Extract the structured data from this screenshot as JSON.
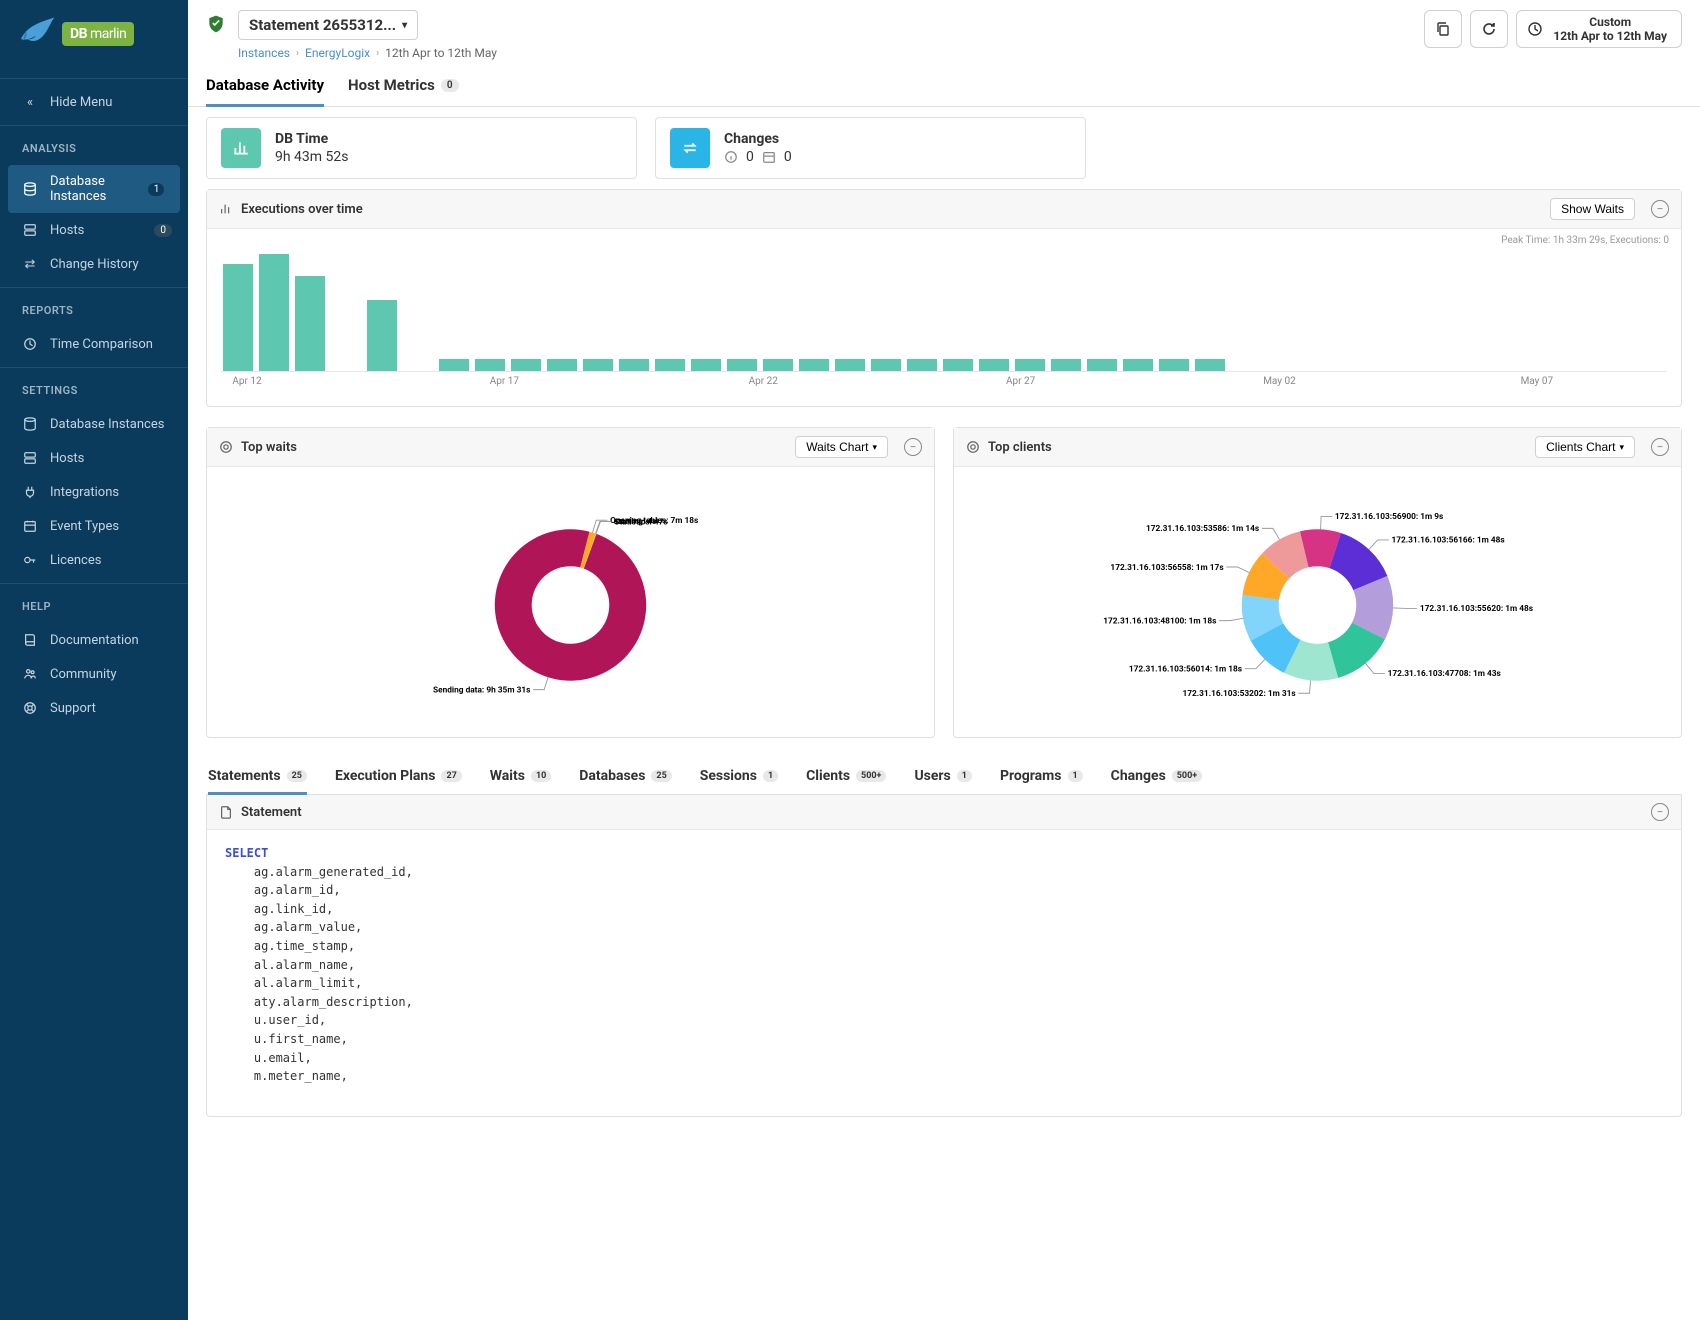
{
  "brand": {
    "name1": "DB",
    "name2": "marlin"
  },
  "sidebar": {
    "hide_menu": "Hide Menu",
    "sections": {
      "analysis": "ANALYSIS",
      "reports": "REPORTS",
      "settings": "SETTINGS",
      "help": "HELP"
    },
    "items": {
      "db_instances": {
        "label": "Database Instances",
        "badge": "1"
      },
      "hosts": {
        "label": "Hosts",
        "badge": "0"
      },
      "change_history": {
        "label": "Change History"
      },
      "time_comparison": {
        "label": "Time Comparison"
      },
      "set_db_instances": {
        "label": "Database Instances"
      },
      "set_hosts": {
        "label": "Hosts"
      },
      "integrations": {
        "label": "Integrations"
      },
      "event_types": {
        "label": "Event Types"
      },
      "licences": {
        "label": "Licences"
      },
      "documentation": {
        "label": "Documentation"
      },
      "community": {
        "label": "Community"
      },
      "support": {
        "label": "Support"
      }
    }
  },
  "header": {
    "title": "Statement 2655312...",
    "breadcrumbs": {
      "a": "Instances",
      "b": "EnergyLogix",
      "c": "12th Apr to 12th May"
    },
    "daterange": {
      "label1": "Custom",
      "label2": "12th Apr to 12th May"
    }
  },
  "main_tabs": {
    "db_activity": "Database Activity",
    "host_metrics": "Host Metrics",
    "host_badge": "0"
  },
  "cards": {
    "db_time": {
      "title": "DB Time",
      "value": "9h 43m 52s",
      "icon_bg": "#5ec7b0"
    },
    "changes": {
      "title": "Changes",
      "v1": "0",
      "v2": "0",
      "icon_bg": "#29b6e6"
    }
  },
  "exec_chart": {
    "title": "Executions over time",
    "show_waits": "Show Waits",
    "peak_line": "Peak Time: 1h 33m 29s, Executions: 0",
    "bars": [
      90,
      98,
      80,
      0,
      60,
      0,
      10,
      10,
      10,
      10,
      10,
      10,
      10,
      10,
      10,
      10,
      10,
      10,
      10,
      10,
      10,
      10,
      10,
      10,
      10,
      10,
      10,
      10
    ],
    "bar_color": "#5ec7b0",
    "xaxis": [
      {
        "pos": 1.8,
        "label": "Apr 12"
      },
      {
        "pos": 19.6,
        "label": "Apr 17"
      },
      {
        "pos": 37.5,
        "label": "Apr 22"
      },
      {
        "pos": 55.3,
        "label": "Apr 27"
      },
      {
        "pos": 73.2,
        "label": "May 02"
      },
      {
        "pos": 91.0,
        "label": "May 07"
      }
    ]
  },
  "top_waits": {
    "title": "Top waits",
    "chart_btn": "Waits Chart",
    "type": "donut",
    "slices": [
      {
        "label": "Sending data: 9h 35m 31s",
        "value": 97.0,
        "color": "#b01657"
      },
      {
        "label": "Opening tables: 7m 18s",
        "value": 1.3,
        "color": "#ffa726"
      },
      {
        "label": "starting: 4s",
        "value": 0.05,
        "color": "#ff7043"
      },
      {
        "label": "Statistics: 47s",
        "value": 0.15,
        "color": "#ffca28"
      }
    ]
  },
  "top_clients": {
    "title": "Top clients",
    "chart_btn": "Clients Chart",
    "type": "donut",
    "slices": [
      {
        "label": "172.31.16.103:56166: 1m 48s",
        "value": 11.2,
        "color": "#5b2ed6"
      },
      {
        "label": "172.31.16.103:55620: 1m 48s",
        "value": 11.2,
        "color": "#b39ddb"
      },
      {
        "label": "172.31.16.103:47708: 1m 43s",
        "value": 10.7,
        "color": "#2fc49a"
      },
      {
        "label": "172.31.16.103:53202: 1m 31s",
        "value": 9.5,
        "color": "#9fe6d0"
      },
      {
        "label": "172.31.16.103:56014: 1m 18s",
        "value": 8.1,
        "color": "#4fc3f7"
      },
      {
        "label": "172.31.16.103:48100: 1m 18s",
        "value": 8.1,
        "color": "#81d4fa"
      },
      {
        "label": "172.31.16.103:56558: 1m 17s",
        "value": 8.0,
        "color": "#ffa726"
      },
      {
        "label": "172.31.16.103:53586: 1m 14s",
        "value": 7.6,
        "color": "#ef9a9a"
      },
      {
        "label": "172.31.16.103:56900: 1m 9s",
        "value": 7.1,
        "color": "#d63384"
      }
    ]
  },
  "sub_tabs": [
    {
      "label": "Statements",
      "badge": "25",
      "active": true
    },
    {
      "label": "Execution Plans",
      "badge": "27"
    },
    {
      "label": "Waits",
      "badge": "10"
    },
    {
      "label": "Databases",
      "badge": "25"
    },
    {
      "label": "Sessions",
      "badge": "1"
    },
    {
      "label": "Clients",
      "badge": "500+"
    },
    {
      "label": "Users",
      "badge": "1"
    },
    {
      "label": "Programs",
      "badge": "1"
    },
    {
      "label": "Changes",
      "badge": "500+"
    }
  ],
  "statement_panel": {
    "title": "Statement",
    "keyword": "SELECT",
    "body": "    ag.alarm_generated_id,\n    ag.alarm_id,\n    ag.link_id,\n    ag.alarm_value,\n    ag.time_stamp,\n    al.alarm_name,\n    al.alarm_limit,\n    aty.alarm_description,\n    u.user_id,\n    u.first_name,\n    u.email,\n    m.meter_name,"
  }
}
